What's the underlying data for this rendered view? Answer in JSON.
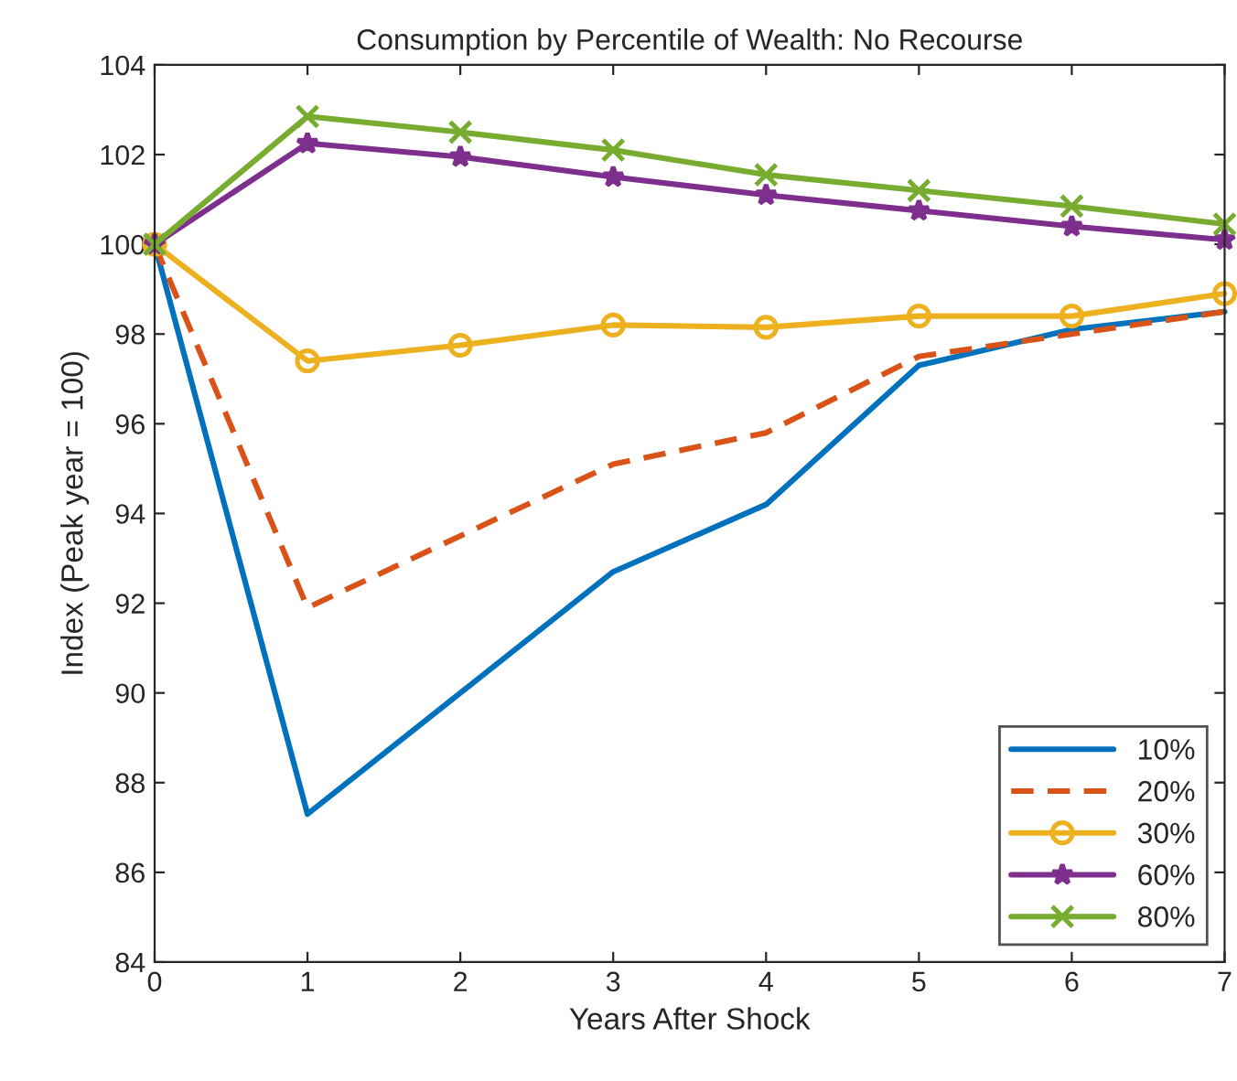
{
  "chart_data": {
    "type": "line",
    "title": "Consumption by Percentile of Wealth: No Recourse",
    "xlabel": "Years After Shock",
    "ylabel": "Index (Peak year = 100)",
    "x": [
      0,
      1,
      2,
      3,
      4,
      5,
      6,
      7
    ],
    "xlim": [
      0,
      7
    ],
    "xticks": [
      0,
      1,
      2,
      3,
      4,
      5,
      6,
      7
    ],
    "ylim": [
      84,
      104
    ],
    "yticks": [
      84,
      86,
      88,
      90,
      92,
      94,
      96,
      98,
      100,
      102,
      104
    ],
    "grid": false,
    "legend": "bottom right",
    "series": [
      {
        "name": "10%",
        "color": "#0072bd",
        "line_style": "solid",
        "marker": "none",
        "values": [
          100,
          87.3,
          90.0,
          92.7,
          94.2,
          97.3,
          98.1,
          98.5
        ]
      },
      {
        "name": "20%",
        "color": "#d95319",
        "line_style": "dashed",
        "marker": "none",
        "values": [
          100,
          91.9,
          93.5,
          95.1,
          95.8,
          97.5,
          98.0,
          98.5
        ]
      },
      {
        "name": "30%",
        "color": "#edb120",
        "line_style": "solid",
        "marker": "circle",
        "values": [
          100,
          97.4,
          97.75,
          98.2,
          98.15,
          98.4,
          98.4,
          98.9
        ]
      },
      {
        "name": "60%",
        "color": "#7e2f8e",
        "line_style": "solid",
        "marker": "star",
        "values": [
          100,
          102.25,
          101.95,
          101.5,
          101.1,
          100.75,
          100.4,
          100.1
        ]
      },
      {
        "name": "80%",
        "color": "#77ac30",
        "line_style": "solid",
        "marker": "cross",
        "values": [
          100,
          102.85,
          102.5,
          102.1,
          101.55,
          101.2,
          100.85,
          100.45
        ]
      }
    ]
  }
}
